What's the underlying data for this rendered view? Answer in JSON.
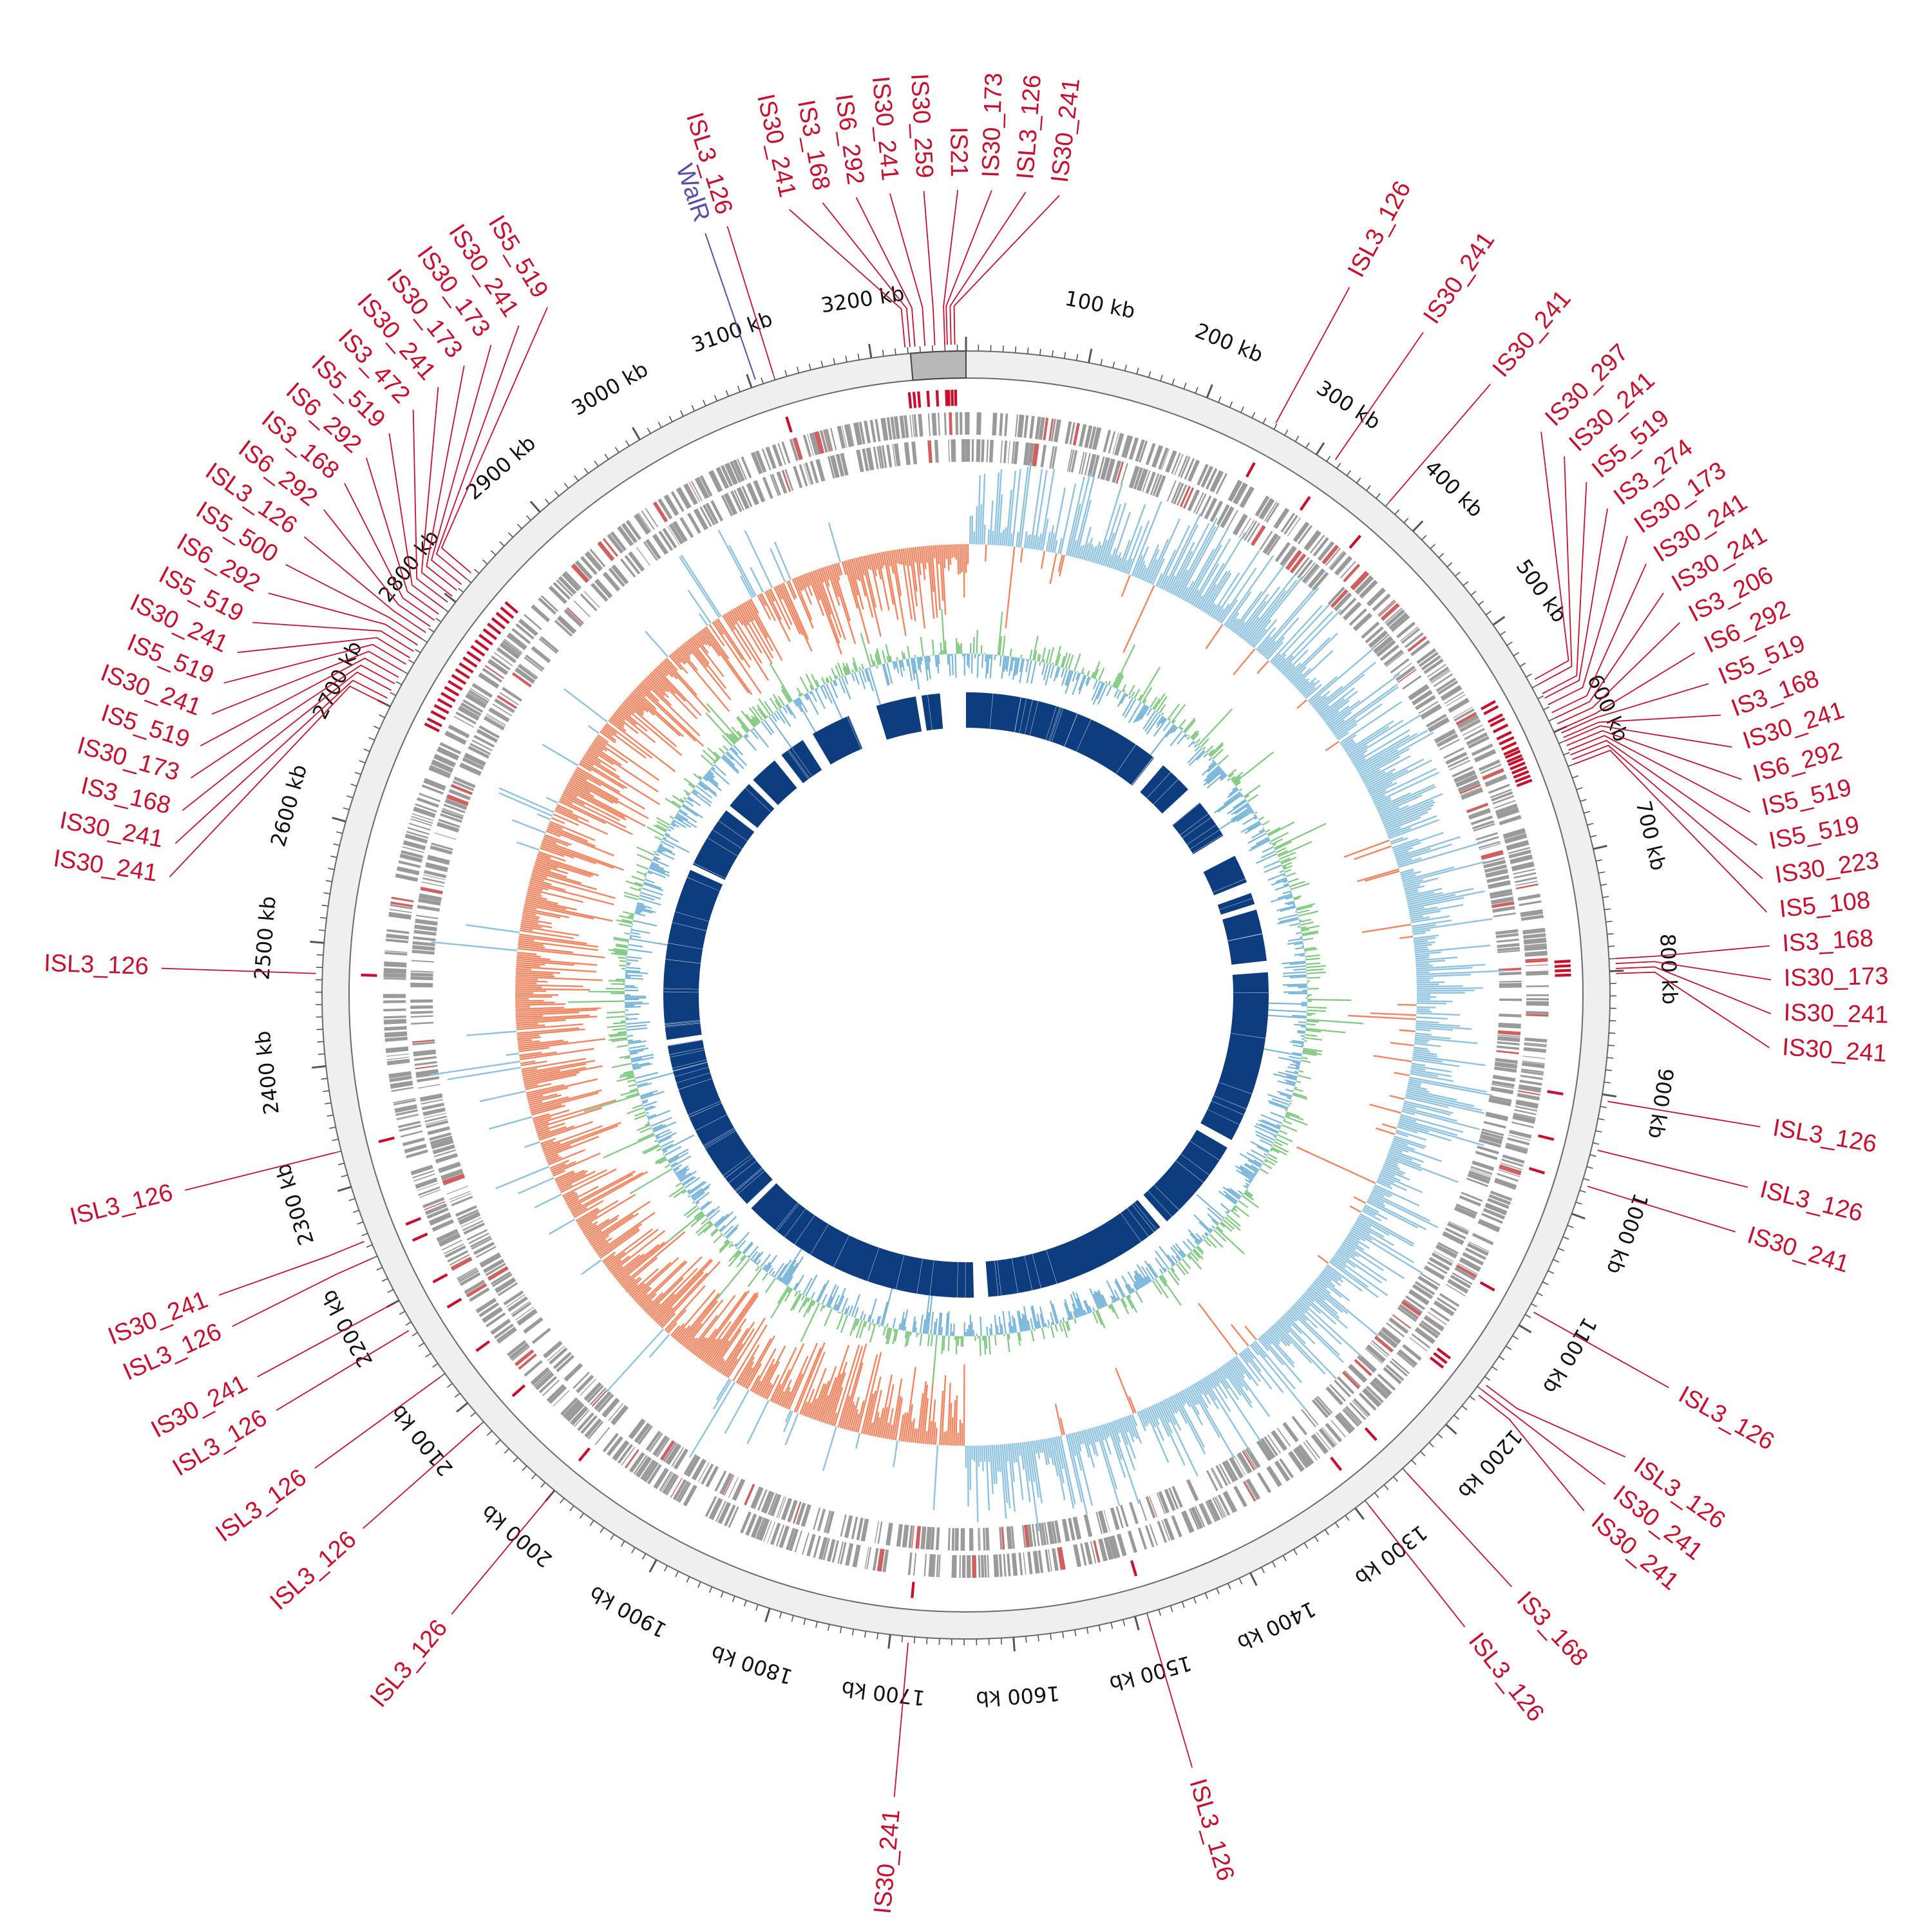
{
  "chart_data": {
    "type": "circular-genome-map",
    "genome_length_kb": 3277,
    "tick_labels": [
      "100 kb",
      "200 kb",
      "300 kb",
      "400 kb",
      "500 kb",
      "600 kb",
      "700 kb",
      "800 kb",
      "900 kb",
      "1000 kb",
      "1100 kb",
      "1200 kb",
      "1300 kb",
      "1400 kb",
      "1500 kb",
      "1600 kb",
      "1700 kb",
      "1800 kb",
      "1900 kb",
      "2000 kb",
      "2100 kb",
      "2200 kb",
      "2300 kb",
      "2400 kb",
      "2500 kb",
      "2600 kb",
      "2700 kb",
      "2800 kb",
      "2900 kb",
      "3000 kb",
      "3100 kb",
      "3200 kb"
    ],
    "tick_values_kb": [
      100,
      200,
      300,
      400,
      500,
      600,
      700,
      800,
      900,
      1000,
      1100,
      1200,
      1300,
      1400,
      1500,
      1600,
      1700,
      1800,
      1900,
      2000,
      2100,
      2200,
      2300,
      2400,
      2500,
      2600,
      2700,
      2800,
      2900,
      3000,
      3100,
      3200
    ],
    "highlight_region_kb": [
      3232,
      3277
    ],
    "tracks": [
      "IS elements (red)",
      "Coding sequences (grey)",
      "GC skew (blue/orange)",
      "GC content (green/blue)",
      "Conserved regions (dark blue)"
    ],
    "colors": {
      "is_element": "#c8102e",
      "walr": "#5b4ea8",
      "cds": "#9a9a9a",
      "skew_positive": "#8ec2e2",
      "skew_negative": "#f4845f",
      "gc_above": "#7fc97f",
      "gc_below": "#7ab6d9",
      "conserved": "#0d3d7e",
      "ring_fill": "#efefef"
    },
    "walr": {
      "label": "WalR",
      "position_kb": 3105
    },
    "is_elements": [
      {
        "name": "ISL3_126",
        "position_kb": 3120
      },
      {
        "name": "IS30_241",
        "position_kb": 3228
      },
      {
        "name": "IS3_168",
        "position_kb": 3232
      },
      {
        "name": "IS6_292",
        "position_kb": 3236
      },
      {
        "name": "IS30_241",
        "position_kb": 3244
      },
      {
        "name": "IS30_259",
        "position_kb": 3252
      },
      {
        "name": "IS21",
        "position_kb": 3260
      },
      {
        "name": "IS30_173",
        "position_kb": 3262
      },
      {
        "name": "ISL3_126",
        "position_kb": 3265
      },
      {
        "name": "IS30_241",
        "position_kb": 3268
      },
      {
        "name": "ISL3_126",
        "position_kb": 259
      },
      {
        "name": "IS30_241",
        "position_kb": 315
      },
      {
        "name": "IS30_241",
        "position_kb": 370
      },
      {
        "name": "IS30_297",
        "position_kb": 555
      },
      {
        "name": "IS30_241",
        "position_kb": 560
      },
      {
        "name": "IS5_519",
        "position_kb": 568
      },
      {
        "name": "IS3_274",
        "position_kb": 572
      },
      {
        "name": "IS30_173",
        "position_kb": 578
      },
      {
        "name": "IS30_241",
        "position_kb": 585
      },
      {
        "name": "IS30_241",
        "position_kb": 590
      },
      {
        "name": "IS3_206",
        "position_kb": 595
      },
      {
        "name": "IS6_292",
        "position_kb": 600
      },
      {
        "name": "IS5_519",
        "position_kb": 603
      },
      {
        "name": "IS3_168",
        "position_kb": 607
      },
      {
        "name": "IS30_241",
        "position_kb": 610
      },
      {
        "name": "IS6_292",
        "position_kb": 614
      },
      {
        "name": "IS5_519",
        "position_kb": 618
      },
      {
        "name": "IS5_519",
        "position_kb": 622
      },
      {
        "name": "IS30_223",
        "position_kb": 626
      },
      {
        "name": "IS5_108",
        "position_kb": 630
      },
      {
        "name": "IS3_168",
        "position_kb": 790
      },
      {
        "name": "IS30_173",
        "position_kb": 794
      },
      {
        "name": "IS30_241",
        "position_kb": 798
      },
      {
        "name": "IS30_241",
        "position_kb": 802
      },
      {
        "name": "ISL3_126",
        "position_kb": 905
      },
      {
        "name": "ISL3_126",
        "position_kb": 945
      },
      {
        "name": "IS30_241",
        "position_kb": 975
      },
      {
        "name": "ISL3_126",
        "position_kb": 1085
      },
      {
        "name": "ISL3_126",
        "position_kb": 1155
      },
      {
        "name": "IS30_241",
        "position_kb": 1160
      },
      {
        "name": "IS30_241",
        "position_kb": 1165
      },
      {
        "name": "IS3_168",
        "position_kb": 1250
      },
      {
        "name": "ISL3_126",
        "position_kb": 1290
      },
      {
        "name": "ISL3_126",
        "position_kb": 1490
      },
      {
        "name": "IS30_241",
        "position_kb": 1685
      },
      {
        "name": "ISL3_126",
        "position_kb": 2000
      },
      {
        "name": "ISL3_126",
        "position_kb": 2080
      },
      {
        "name": "ISL3_126",
        "position_kb": 2130
      },
      {
        "name": "ISL3_126",
        "position_kb": 2175
      },
      {
        "name": "IS30_241",
        "position_kb": 2200
      },
      {
        "name": "ISL3_126",
        "position_kb": 2240
      },
      {
        "name": "IS30_241",
        "position_kb": 2255
      },
      {
        "name": "ISL3_126",
        "position_kb": 2330
      },
      {
        "name": "ISL3_126",
        "position_kb": 2475
      },
      {
        "name": "IS30_241",
        "position_kb": 2700
      },
      {
        "name": "IS30_241",
        "position_kb": 2705
      },
      {
        "name": "IS3_168",
        "position_kb": 2712
      },
      {
        "name": "IS30_173",
        "position_kb": 2718
      },
      {
        "name": "IS5_519",
        "position_kb": 2724
      },
      {
        "name": "IS30_241",
        "position_kb": 2730
      },
      {
        "name": "IS5_519",
        "position_kb": 2736
      },
      {
        "name": "IS30_241",
        "position_kb": 2742
      },
      {
        "name": "IS5_519",
        "position_kb": 2748
      },
      {
        "name": "IS6_292",
        "position_kb": 2754
      },
      {
        "name": "IS5_500",
        "position_kb": 2760
      },
      {
        "name": "ISL3_126",
        "position_kb": 2766
      },
      {
        "name": "IS6_292",
        "position_kb": 2772
      },
      {
        "name": "IS3_168",
        "position_kb": 2778
      },
      {
        "name": "IS6_292",
        "position_kb": 2784
      },
      {
        "name": "IS5_519",
        "position_kb": 2790
      },
      {
        "name": "IS3_472",
        "position_kb": 2796
      },
      {
        "name": "IS30_241",
        "position_kb": 2802
      },
      {
        "name": "IS30_173",
        "position_kb": 2808
      },
      {
        "name": "IS30_173",
        "position_kb": 2814
      },
      {
        "name": "IS30_241",
        "position_kb": 2820
      },
      {
        "name": "IS5_519",
        "position_kb": 2826
      }
    ]
  }
}
